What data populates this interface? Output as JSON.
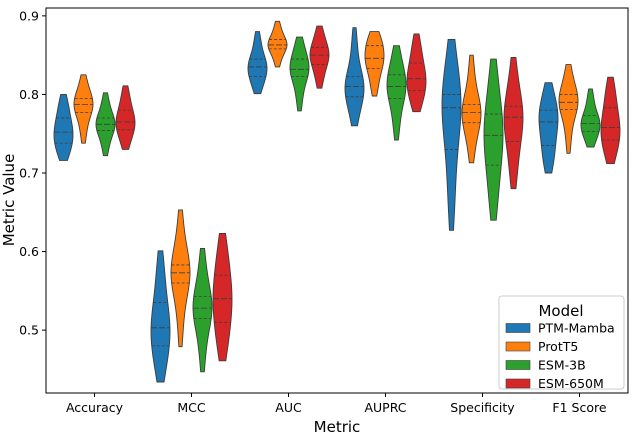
{
  "chart_data": {
    "type": "violin",
    "title": "",
    "xlabel": "Metric",
    "ylabel": "Metric Value",
    "ylim": [
      0.42,
      0.91
    ],
    "yticks": [
      0.5,
      0.6,
      0.7,
      0.8,
      0.9
    ],
    "ytick_labels": [
      "0.5",
      "0.6",
      "0.7",
      "0.8",
      "0.9"
    ],
    "categories": [
      "Accuracy",
      "MCC",
      "AUC",
      "AUPRC",
      "Specificity",
      "F1 Score"
    ],
    "grid": false,
    "legend": {
      "title": "Model",
      "placement": "lower-right",
      "entries": [
        "PTM-Mamba",
        "ProtT5",
        "ESM-3B",
        "ESM-650M"
      ]
    },
    "series": [
      {
        "name": "PTM-Mamba",
        "color": "#1f77b4",
        "violins": [
          {
            "min": 0.716,
            "q1": 0.738,
            "median": 0.752,
            "q3": 0.77,
            "max": 0.8
          },
          {
            "min": 0.434,
            "q1": 0.48,
            "median": 0.503,
            "q3": 0.535,
            "max": 0.601
          },
          {
            "min": 0.801,
            "q1": 0.823,
            "median": 0.835,
            "q3": 0.845,
            "max": 0.88
          },
          {
            "min": 0.76,
            "q1": 0.797,
            "median": 0.81,
            "q3": 0.823,
            "max": 0.885
          },
          {
            "min": 0.627,
            "q1": 0.73,
            "median": 0.783,
            "q3": 0.8,
            "max": 0.87
          },
          {
            "min": 0.7,
            "q1": 0.735,
            "median": 0.765,
            "q3": 0.78,
            "max": 0.815
          }
        ]
      },
      {
        "name": "ProtT5",
        "color": "#ff7f0e",
        "violins": [
          {
            "min": 0.738,
            "q1": 0.777,
            "median": 0.787,
            "q3": 0.795,
            "max": 0.825
          },
          {
            "min": 0.479,
            "q1": 0.56,
            "median": 0.573,
            "q3": 0.583,
            "max": 0.653
          },
          {
            "min": 0.835,
            "q1": 0.858,
            "median": 0.863,
            "q3": 0.87,
            "max": 0.893
          },
          {
            "min": 0.798,
            "q1": 0.833,
            "median": 0.846,
            "q3": 0.862,
            "max": 0.88
          },
          {
            "min": 0.713,
            "q1": 0.764,
            "median": 0.777,
            "q3": 0.787,
            "max": 0.85
          },
          {
            "min": 0.725,
            "q1": 0.781,
            "median": 0.79,
            "q3": 0.8,
            "max": 0.838
          }
        ]
      },
      {
        "name": "ESM-3B",
        "color": "#2ca02c",
        "violins": [
          {
            "min": 0.722,
            "q1": 0.754,
            "median": 0.762,
            "q3": 0.77,
            "max": 0.802
          },
          {
            "min": 0.447,
            "q1": 0.515,
            "median": 0.528,
            "q3": 0.543,
            "max": 0.604
          },
          {
            "min": 0.779,
            "q1": 0.823,
            "median": 0.832,
            "q3": 0.845,
            "max": 0.873
          },
          {
            "min": 0.742,
            "q1": 0.795,
            "median": 0.81,
            "q3": 0.825,
            "max": 0.862
          },
          {
            "min": 0.64,
            "q1": 0.71,
            "median": 0.748,
            "q3": 0.775,
            "max": 0.845
          },
          {
            "min": 0.733,
            "q1": 0.753,
            "median": 0.763,
            "q3": 0.773,
            "max": 0.807
          }
        ]
      },
      {
        "name": "ESM-650M",
        "color": "#d62728",
        "violins": [
          {
            "min": 0.73,
            "q1": 0.755,
            "median": 0.765,
            "q3": 0.78,
            "max": 0.811
          },
          {
            "min": 0.461,
            "q1": 0.51,
            "median": 0.54,
            "q3": 0.57,
            "max": 0.623
          },
          {
            "min": 0.808,
            "q1": 0.838,
            "median": 0.85,
            "q3": 0.86,
            "max": 0.887
          },
          {
            "min": 0.778,
            "q1": 0.805,
            "median": 0.82,
            "q3": 0.84,
            "max": 0.877
          },
          {
            "min": 0.68,
            "q1": 0.74,
            "median": 0.771,
            "q3": 0.785,
            "max": 0.847
          },
          {
            "min": 0.712,
            "q1": 0.742,
            "median": 0.758,
            "q3": 0.783,
            "max": 0.822
          }
        ]
      }
    ]
  }
}
